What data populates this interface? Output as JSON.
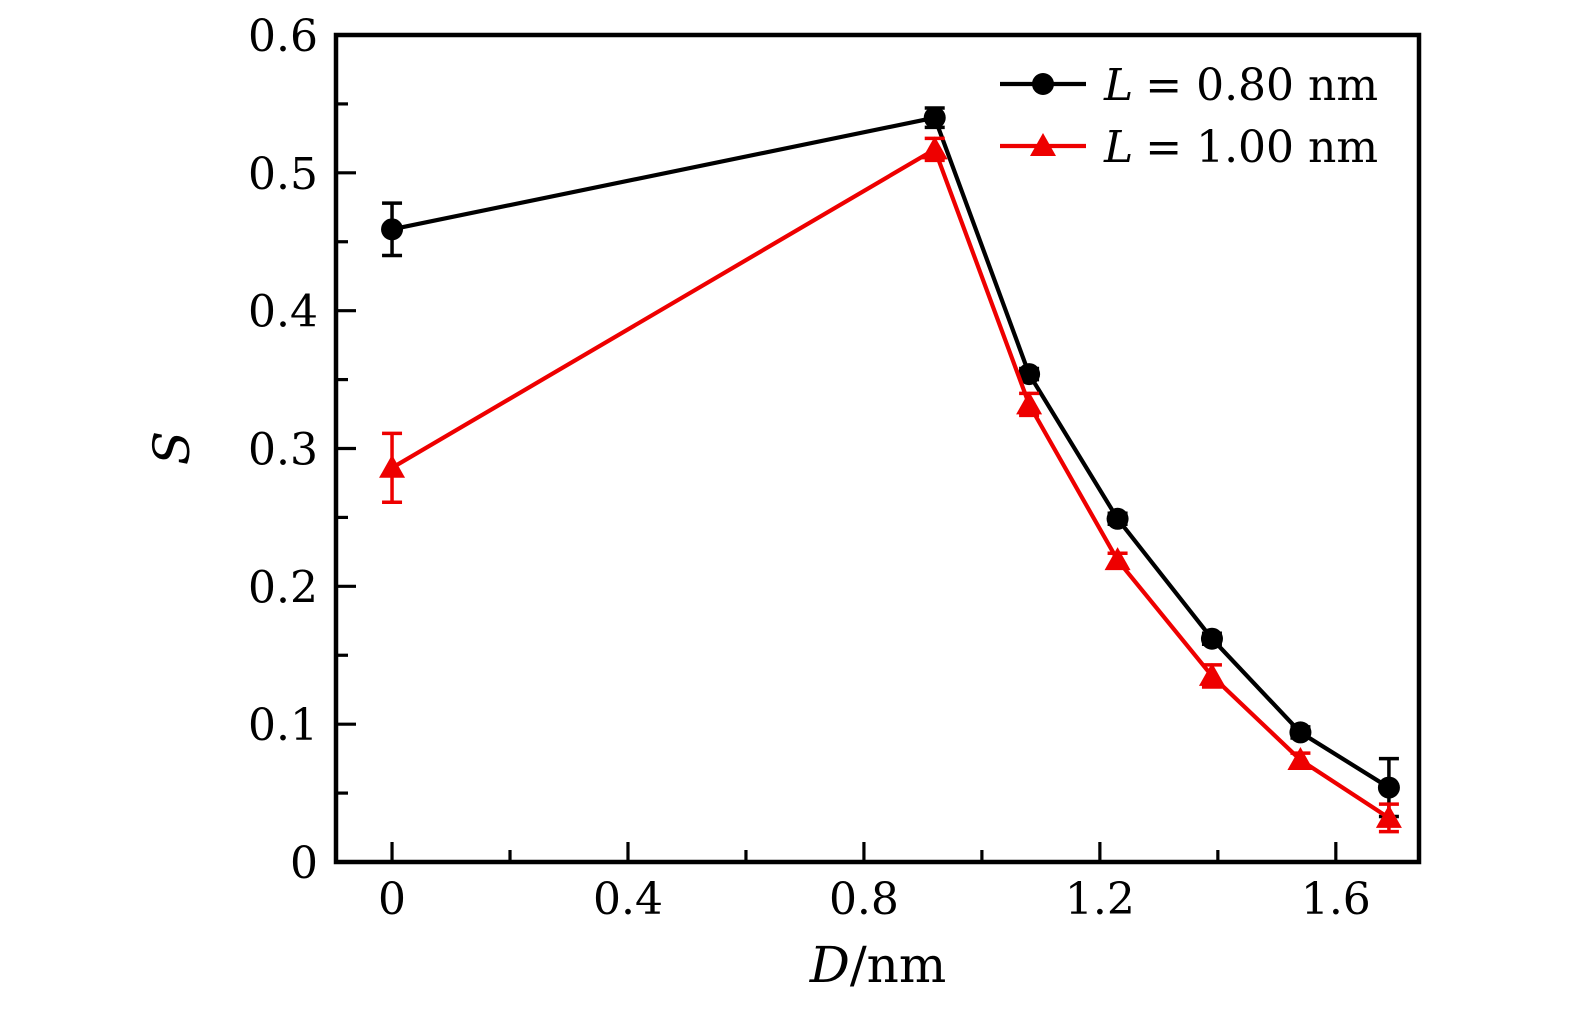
{
  "figure": {
    "background": "#ffffff"
  },
  "labels": {
    "xlabel_var": "D",
    "xlabel_unit": "/nm",
    "ylabel": "S"
  },
  "chart_data": {
    "type": "line",
    "title": "",
    "xlabel": "D/nm",
    "ylabel": "S",
    "xlim": [
      -0.095,
      1.741
    ],
    "ylim": [
      0,
      0.6
    ],
    "grid": false,
    "legend_position": "top-right",
    "x_major_ticks": [
      0,
      0.4,
      0.8,
      1.2,
      1.6
    ],
    "x_major_tick_labels": [
      "0",
      "0.4",
      "0.8",
      "1.2",
      "1.6"
    ],
    "x_minor_ticks": [
      0.2,
      0.6,
      1.0,
      1.4
    ],
    "y_major_ticks": [
      0,
      0.1,
      0.2,
      0.3,
      0.4,
      0.5,
      0.6
    ],
    "y_major_tick_labels": [
      "0",
      "0.1",
      "0.2",
      "0.3",
      "0.4",
      "0.5",
      "0.6"
    ],
    "y_minor_ticks": [
      0.05,
      0.15,
      0.25,
      0.35,
      0.45,
      0.55
    ],
    "series": [
      {
        "name": "L = 0.80 nm",
        "color": "#000000",
        "marker": "circle",
        "x": [
          0.0,
          0.92,
          1.08,
          1.23,
          1.39,
          1.54,
          1.69
        ],
        "y": [
          0.459,
          0.54,
          0.354,
          0.249,
          0.162,
          0.094,
          0.054
        ],
        "yerr": [
          0.019,
          0.007,
          0.004,
          0.004,
          0.004,
          0.004,
          0.021
        ]
      },
      {
        "name": "L = 1.00 nm",
        "color": "#ee0000",
        "marker": "triangle",
        "x": [
          0.0,
          0.92,
          1.08,
          1.23,
          1.39,
          1.54,
          1.69
        ],
        "y": [
          0.286,
          0.517,
          0.332,
          0.219,
          0.135,
          0.074,
          0.032
        ],
        "yerr": [
          0.025,
          0.008,
          0.008,
          0.005,
          0.008,
          0.005,
          0.01
        ]
      }
    ]
  }
}
